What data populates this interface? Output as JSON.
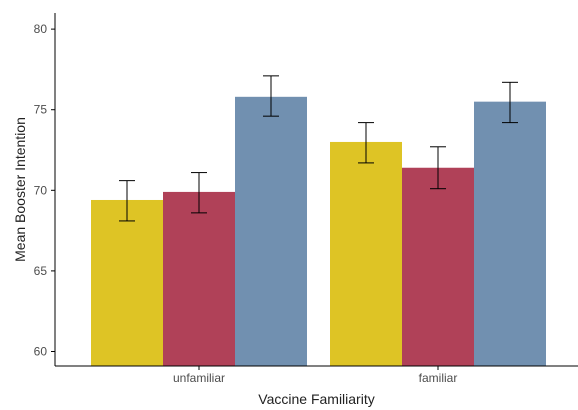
{
  "chart_data": {
    "type": "bar",
    "title": "",
    "xlabel": "Vaccine Familiarity",
    "ylabel": "Mean Booster Intention",
    "categories": [
      "unfamiliar",
      "familiar"
    ],
    "ylim": [
      59.1,
      81
    ],
    "yticks": [
      60,
      65,
      70,
      75,
      80
    ],
    "grid": false,
    "legend": "none",
    "series": [
      {
        "color": "#DEC425",
        "values": [
          69.4,
          73.0
        ],
        "err_low": [
          68.1,
          71.7
        ],
        "err_high": [
          70.6,
          74.2
        ]
      },
      {
        "color": "#B04158",
        "values": [
          69.9,
          71.4
        ],
        "err_low": [
          68.6,
          70.1
        ],
        "err_high": [
          71.1,
          72.7
        ]
      },
      {
        "color": "#7190B0",
        "values": [
          75.8,
          75.5
        ],
        "err_low": [
          74.6,
          74.2
        ],
        "err_high": [
          77.1,
          76.7
        ]
      }
    ]
  }
}
